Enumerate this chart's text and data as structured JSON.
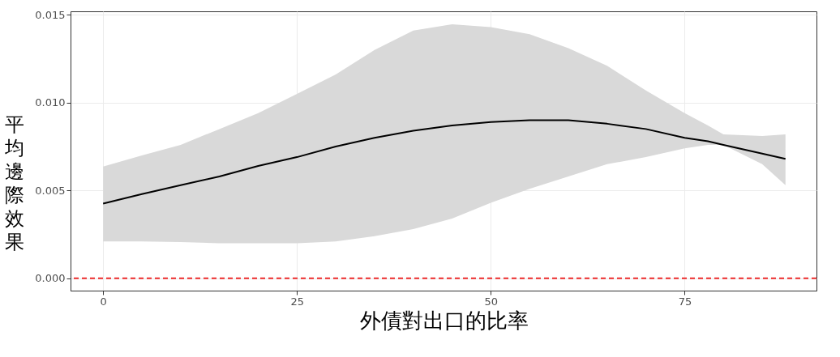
{
  "chart_data": {
    "type": "line",
    "xlabel": "外債對出口的比率",
    "ylabel": "平均邊際效果",
    "x": [
      0,
      5,
      10,
      15,
      20,
      25,
      30,
      35,
      40,
      45,
      50,
      55,
      60,
      65,
      70,
      75,
      78,
      80,
      85,
      88
    ],
    "series": [
      {
        "color": "#000000",
        "values": [
          0.00425,
          0.0048,
          0.0053,
          0.0058,
          0.0064,
          0.0069,
          0.0075,
          0.008,
          0.0084,
          0.0087,
          0.0089,
          0.009,
          0.009,
          0.0088,
          0.0085,
          0.008,
          0.0078,
          0.0076,
          0.0071,
          0.0068
        ],
        "lower": [
          0.0021,
          0.0021,
          0.00206,
          0.002,
          0.002,
          0.002,
          0.0021,
          0.0024,
          0.0028,
          0.0034,
          0.0043,
          0.0051,
          0.0058,
          0.0065,
          0.0069,
          0.0074,
          0.0076,
          0.0076,
          0.0065,
          0.0053
        ],
        "upper": [
          0.00636,
          0.007,
          0.0076,
          0.0085,
          0.0094,
          0.0105,
          0.0116,
          0.013,
          0.0141,
          0.01446,
          0.0143,
          0.0139,
          0.0131,
          0.0121,
          0.0107,
          0.0094,
          0.0087,
          0.0082,
          0.0081,
          0.0082
        ]
      }
    ],
    "xlim": [
      -4.2,
      92
    ],
    "ylim": [
      -0.0007,
      0.0152
    ],
    "xticks": [
      0,
      25,
      50,
      75
    ],
    "yticks": [
      {
        "value": 0,
        "label": "0.000"
      },
      {
        "value": 0.005,
        "label": "0.005"
      },
      {
        "value": 0.01,
        "label": "0.010"
      },
      {
        "value": 0.015,
        "label": "0.015"
      }
    ],
    "grid": true,
    "line_style": "solid",
    "marker": "none",
    "ref_lines": [
      {
        "axis": "y",
        "value": 0,
        "color": "#ee2c2c",
        "line_style": "dashed"
      }
    ]
  }
}
